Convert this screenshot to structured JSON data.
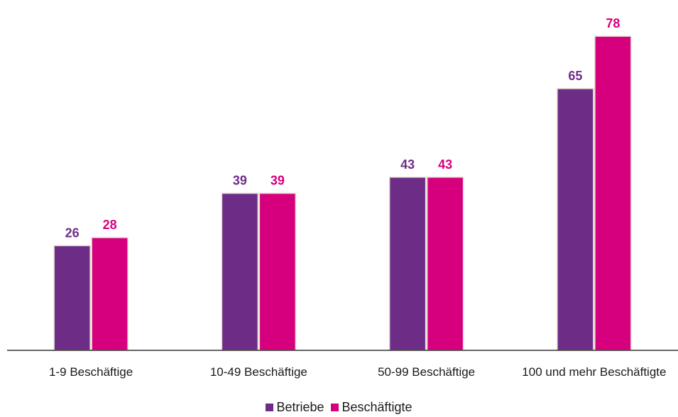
{
  "chart_data": {
    "type": "bar",
    "categories": [
      "1-9 Beschäftige",
      "10-49 Beschäftige",
      "50-99 Beschäftige",
      "100 und mehr Beschäftigte"
    ],
    "series": [
      {
        "name": "Betriebe",
        "values": [
          26,
          39,
          43,
          65
        ],
        "color": "#6d2d87"
      },
      {
        "name": "Beschäftigte",
        "values": [
          28,
          39,
          43,
          78
        ],
        "color": "#d6007e"
      }
    ],
    "title": "",
    "xlabel": "",
    "ylabel": "",
    "ylim": [
      0,
      87
    ],
    "grid": false,
    "legend_position": "bottom-center"
  }
}
